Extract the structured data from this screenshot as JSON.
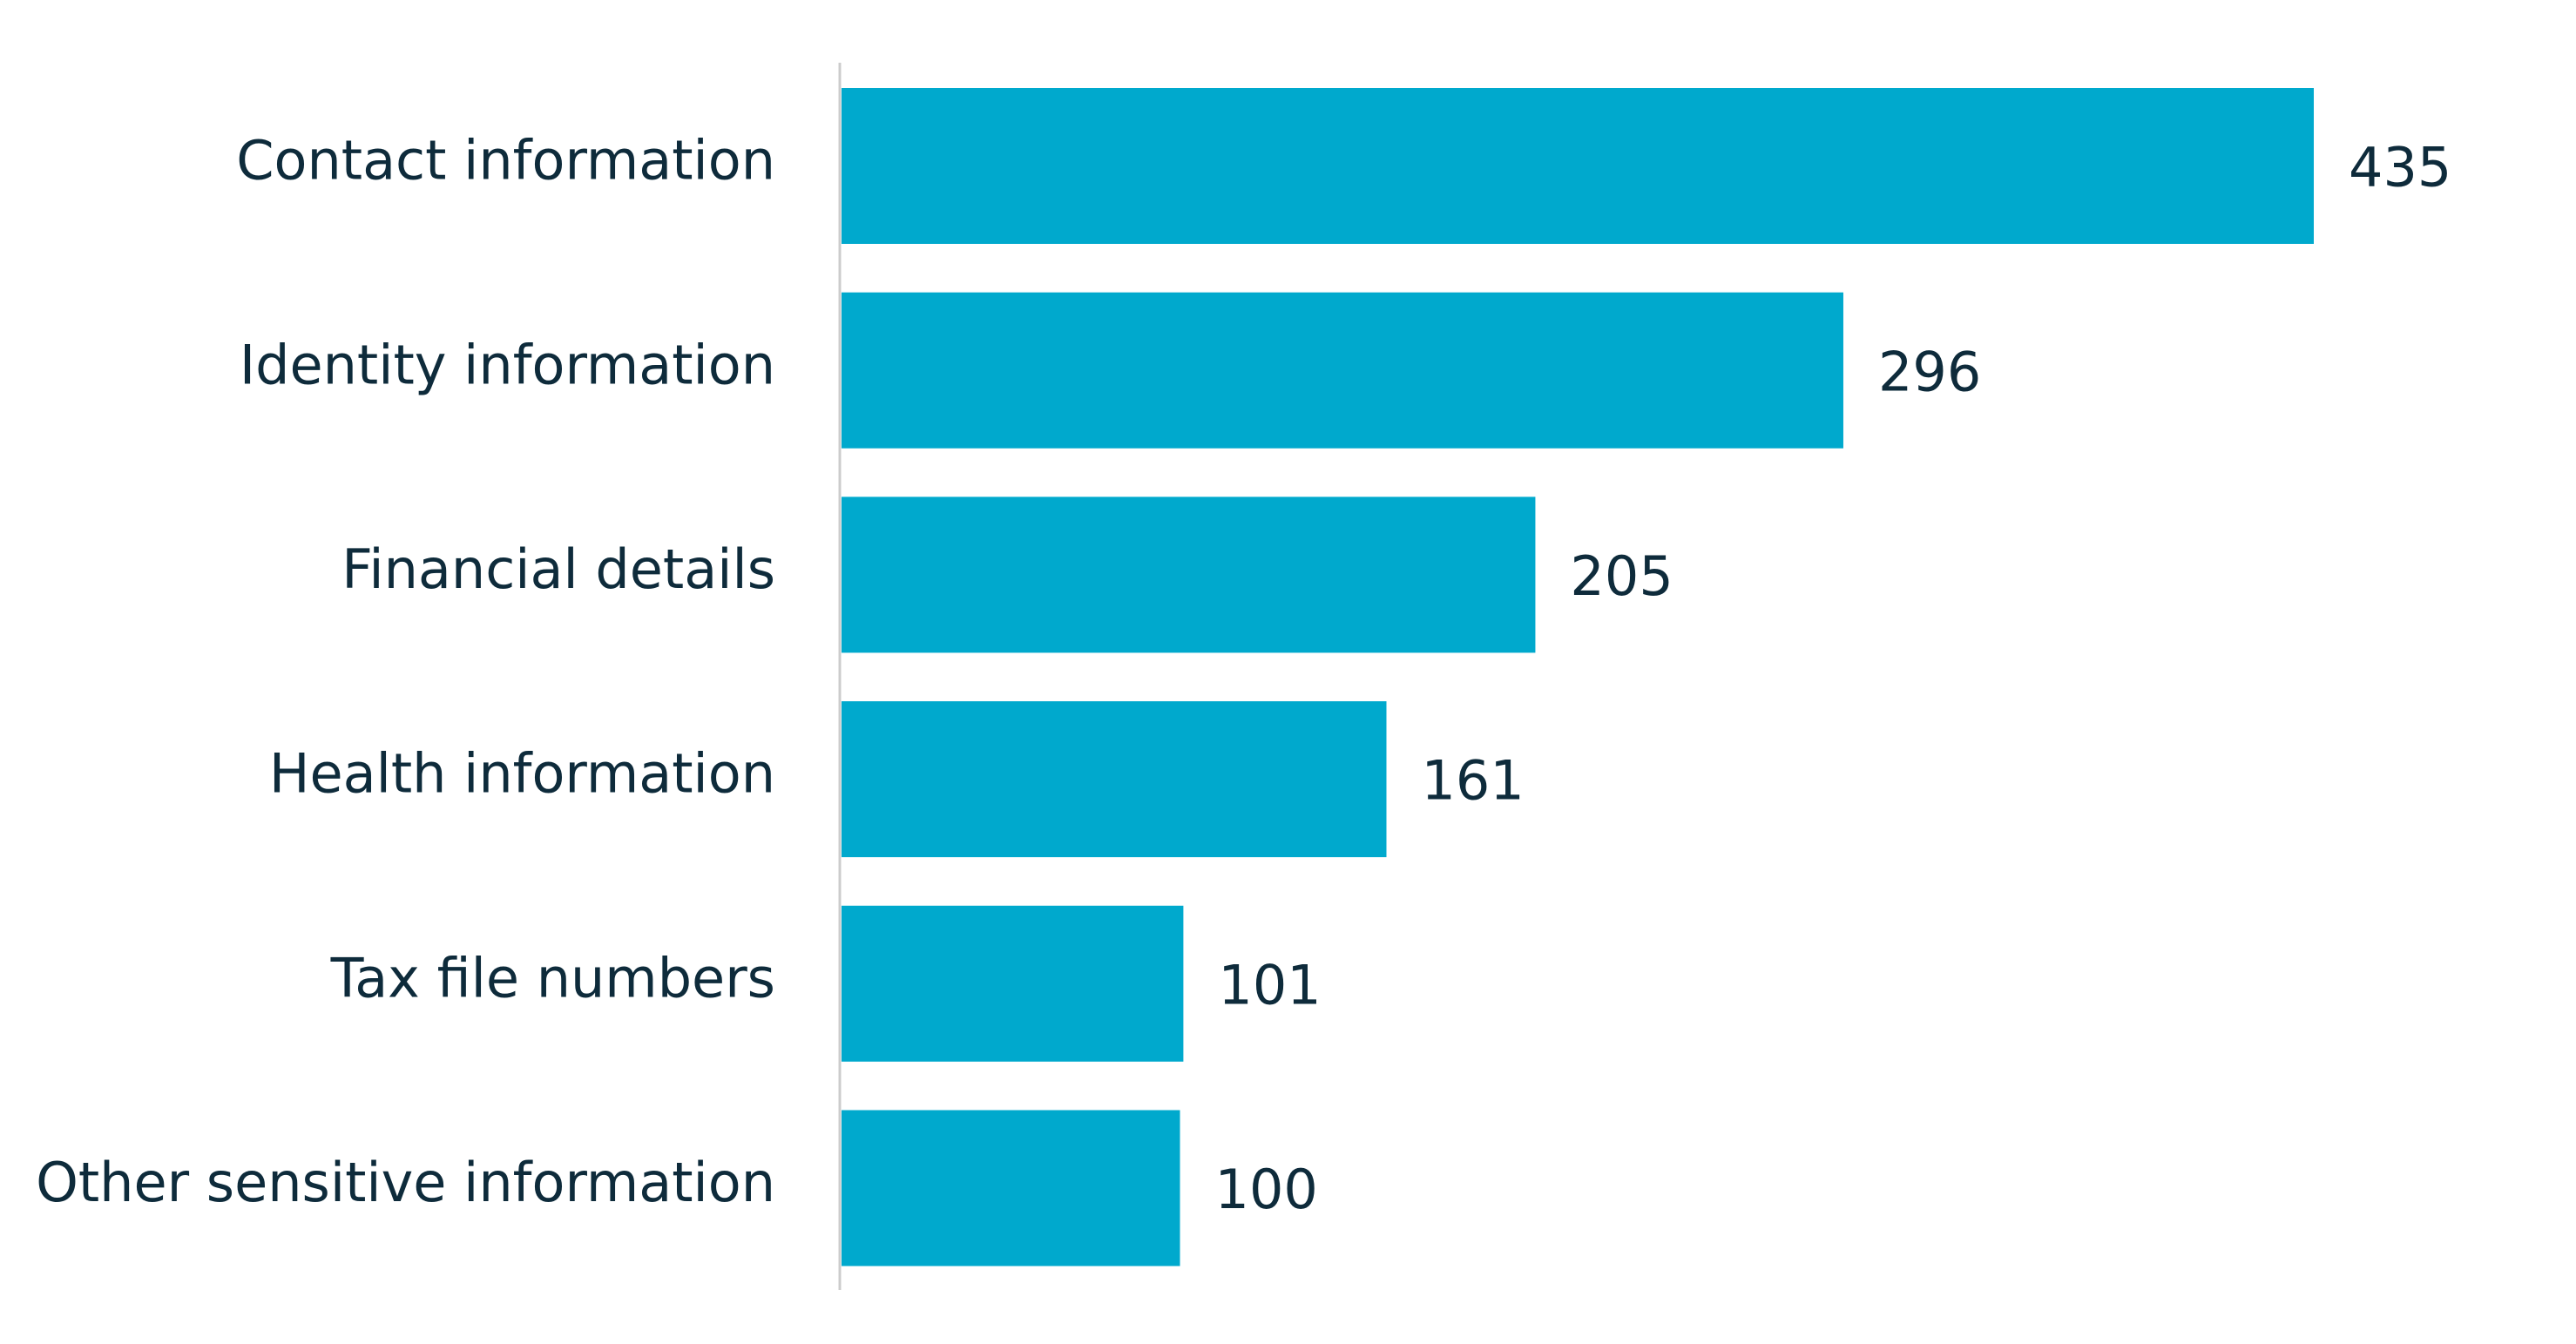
{
  "chart_data": {
    "type": "bar",
    "orientation": "horizontal",
    "categories": [
      "Contact information",
      "Identity information",
      "Financial details",
      "Health information",
      "Tax file numbers",
      "Other sensitive information"
    ],
    "values": [
      435,
      296,
      205,
      161,
      101,
      100
    ],
    "color": "#00a9cd"
  }
}
